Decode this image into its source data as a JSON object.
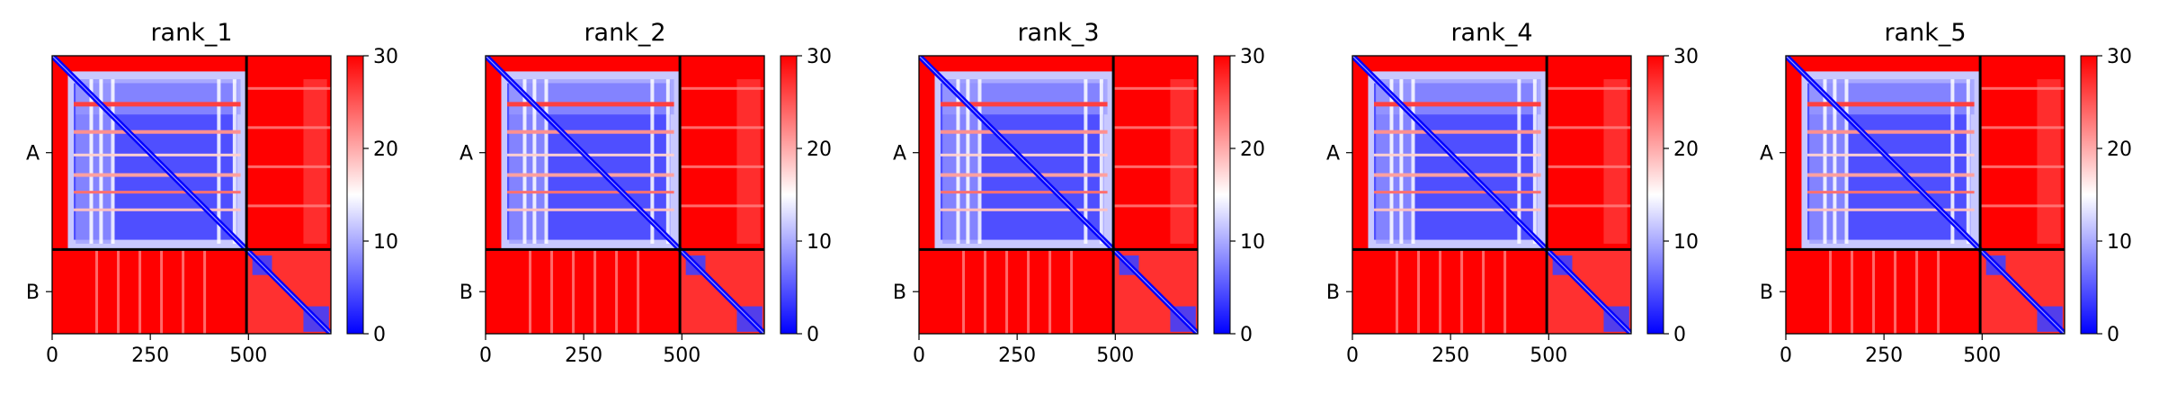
{
  "chart_data": [
    {
      "type": "heatmap",
      "title": "rank_1",
      "x_ticks": [
        0,
        250,
        500
      ],
      "xlim": [
        0,
        710
      ],
      "ylim": [
        710,
        0
      ],
      "chain_boundary": 495,
      "chains": [
        {
          "label": "A",
          "start": 0,
          "end": 495
        },
        {
          "label": "B",
          "start": 495,
          "end": 710
        }
      ],
      "colorbar": {
        "ticks": [
          0,
          10,
          20,
          30
        ],
        "range": [
          0,
          30
        ],
        "colormap": "bwr"
      }
    },
    {
      "type": "heatmap",
      "title": "rank_2",
      "x_ticks": [
        0,
        250,
        500
      ],
      "xlim": [
        0,
        710
      ],
      "ylim": [
        710,
        0
      ],
      "chain_boundary": 495,
      "chains": [
        {
          "label": "A",
          "start": 0,
          "end": 495
        },
        {
          "label": "B",
          "start": 495,
          "end": 710
        }
      ],
      "colorbar": {
        "ticks": [
          0,
          10,
          20,
          30
        ],
        "range": [
          0,
          30
        ],
        "colormap": "bwr"
      }
    },
    {
      "type": "heatmap",
      "title": "rank_3",
      "x_ticks": [
        0,
        250,
        500
      ],
      "xlim": [
        0,
        710
      ],
      "ylim": [
        710,
        0
      ],
      "chain_boundary": 495,
      "chains": [
        {
          "label": "A",
          "start": 0,
          "end": 495
        },
        {
          "label": "B",
          "start": 495,
          "end": 710
        }
      ],
      "colorbar": {
        "ticks": [
          0,
          10,
          20,
          30
        ],
        "range": [
          0,
          30
        ],
        "colormap": "bwr"
      }
    },
    {
      "type": "heatmap",
      "title": "rank_4",
      "x_ticks": [
        0,
        250,
        500
      ],
      "xlim": [
        0,
        710
      ],
      "ylim": [
        710,
        0
      ],
      "chain_boundary": 495,
      "chains": [
        {
          "label": "A",
          "start": 0,
          "end": 495
        },
        {
          "label": "B",
          "start": 495,
          "end": 710
        }
      ],
      "colorbar": {
        "ticks": [
          0,
          10,
          20,
          30
        ],
        "range": [
          0,
          30
        ],
        "colormap": "bwr"
      }
    },
    {
      "type": "heatmap",
      "title": "rank_5",
      "x_ticks": [
        0,
        250,
        500
      ],
      "xlim": [
        0,
        710
      ],
      "ylim": [
        710,
        0
      ],
      "chain_boundary": 495,
      "chains": [
        {
          "label": "A",
          "start": 0,
          "end": 495
        },
        {
          "label": "B",
          "start": 495,
          "end": 710
        }
      ],
      "colorbar": {
        "ticks": [
          0,
          10,
          20,
          30
        ],
        "range": [
          0,
          30
        ],
        "colormap": "bwr"
      }
    }
  ],
  "colors": {
    "low": "#0000ff",
    "mid": "#ffffff",
    "high": "#ff0000",
    "divider": "#000000"
  }
}
